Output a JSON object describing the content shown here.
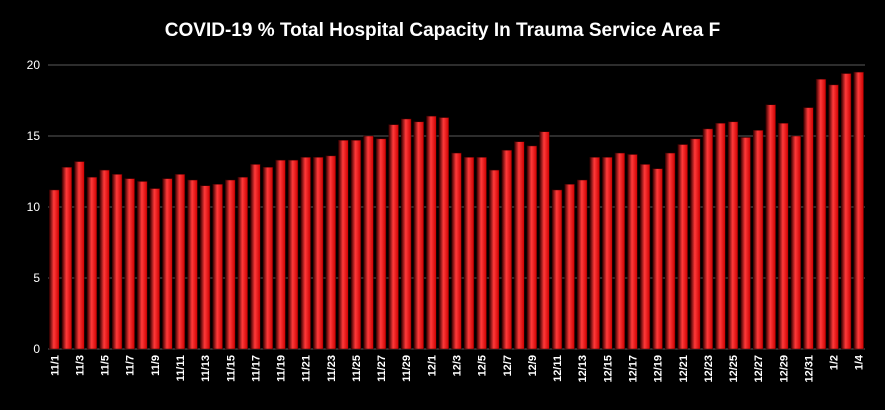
{
  "chart_data": {
    "type": "bar",
    "title": "COVID-19 % Total Hospital Capacity In Trauma Service Area F",
    "xlabel": "",
    "ylabel": "",
    "ylim": [
      0,
      20
    ],
    "yticks": [
      0,
      5,
      10,
      15,
      20
    ],
    "grid": true,
    "legend": "none",
    "colors": {
      "background": "#000000",
      "bar": "#cc0000",
      "bar_edge": "#3a0000",
      "bar_highlight": "#ff3a3a",
      "gridline": "#5a5a5a",
      "text": "#ffffff"
    },
    "categories": [
      "11/1",
      "11/2",
      "11/3",
      "11/4",
      "11/5",
      "11/6",
      "11/7",
      "11/8",
      "11/9",
      "11/10",
      "11/11",
      "11/12",
      "11/13",
      "11/14",
      "11/15",
      "11/16",
      "11/17",
      "11/18",
      "11/19",
      "11/20",
      "11/21",
      "11/22",
      "11/23",
      "11/24",
      "11/25",
      "11/26",
      "11/27",
      "11/28",
      "11/29",
      "11/30",
      "12/1",
      "12/2",
      "12/3",
      "12/4",
      "12/5",
      "12/6",
      "12/7",
      "12/8",
      "12/9",
      "12/10",
      "12/11",
      "12/12",
      "12/13",
      "12/14",
      "12/15",
      "12/16",
      "12/17",
      "12/18",
      "12/19",
      "12/20",
      "12/21",
      "12/22",
      "12/23",
      "12/24",
      "12/25",
      "12/26",
      "12/27",
      "12/28",
      "12/29",
      "12/30",
      "12/31",
      "1/1",
      "1/2",
      "1/3",
      "1/4"
    ],
    "tick_labels": [
      "11/1",
      "11/3",
      "11/5",
      "11/7",
      "11/9",
      "11/11",
      "11/13",
      "11/15",
      "11/17",
      "11/19",
      "11/21",
      "11/23",
      "11/25",
      "11/27",
      "11/29",
      "12/1",
      "12/3",
      "12/5",
      "12/7",
      "12/9",
      "12/11",
      "12/13",
      "12/15",
      "12/17",
      "12/19",
      "12/21",
      "12/23",
      "12/25",
      "12/27",
      "12/29",
      "12/31",
      "1/2",
      "1/4"
    ],
    "values": [
      11.2,
      12.8,
      13.2,
      12.1,
      12.6,
      12.3,
      12.0,
      11.8,
      11.3,
      12.0,
      12.3,
      11.9,
      11.5,
      11.6,
      11.9,
      12.1,
      13.0,
      12.8,
      13.3,
      13.3,
      13.5,
      13.5,
      13.6,
      14.7,
      14.7,
      15.0,
      14.8,
      15.8,
      16.2,
      16.0,
      16.4,
      16.3,
      13.8,
      13.5,
      13.5,
      12.6,
      14.0,
      14.6,
      14.3,
      15.3,
      11.2,
      11.6,
      11.9,
      13.5,
      13.5,
      13.8,
      13.7,
      13.0,
      12.7,
      13.8,
      14.4,
      14.8,
      15.5,
      15.9,
      16.0,
      14.9,
      15.4,
      17.2,
      15.9,
      15.0,
      17.0,
      19.0,
      18.6,
      19.4,
      19.5
    ]
  }
}
